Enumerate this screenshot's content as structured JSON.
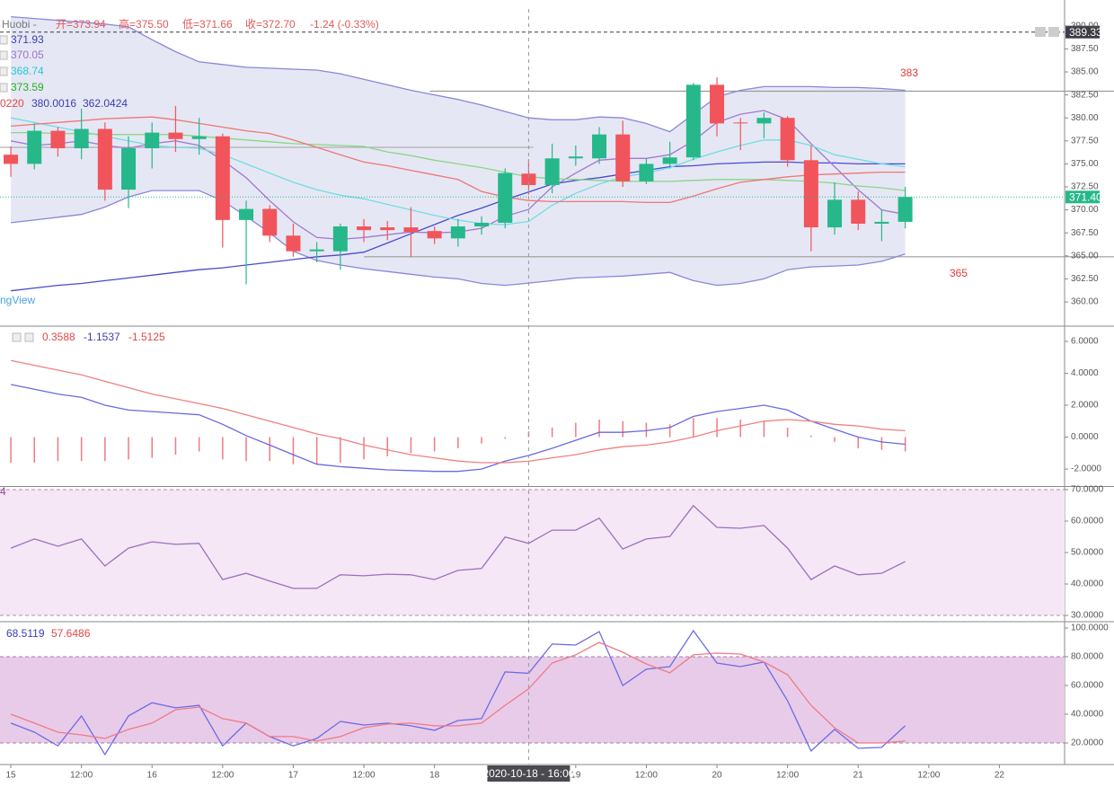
{
  "header": {
    "title": "Huobi -",
    "ohlc": [
      "开=373.94",
      "高=375.50",
      "低=371.66",
      "收=372.70"
    ],
    "change": "-1.24 (-0.33%)",
    "watermark": "ngView"
  },
  "time_axis": {
    "xlim": [
      -0.46,
      44.77
    ],
    "xticks": [
      {
        "value": 0,
        "label": "15"
      },
      {
        "value": 3,
        "label": "12:00"
      },
      {
        "value": 6,
        "label": "16"
      },
      {
        "value": 9,
        "label": "12:00"
      },
      {
        "value": 12,
        "label": "17"
      },
      {
        "value": 15,
        "label": "12:00"
      },
      {
        "value": 18,
        "label": "18"
      },
      {
        "value": 24,
        "label": "19"
      },
      {
        "value": 27,
        "label": "12:00"
      },
      {
        "value": 30,
        "label": "20"
      },
      {
        "value": 33,
        "label": "12:00"
      },
      {
        "value": 36,
        "label": "21"
      },
      {
        "value": 39,
        "label": "12:00"
      },
      {
        "value": 42,
        "label": "22"
      }
    ],
    "crosshair": {
      "value": 22,
      "label": "2020-10-18 - 16:00"
    }
  },
  "chart_data": [
    {
      "type": "candlestick",
      "up_color": "#26b88a",
      "down_color": "#f2545b",
      "open": [
        376.0,
        375.0,
        378.6,
        376.7,
        378.8,
        372.2,
        376.7,
        378.4,
        377.7,
        378.0,
        368.9,
        370.1,
        367.2,
        365.5,
        365.5,
        368.2,
        368.1,
        368.1,
        367.7,
        366.9,
        368.2,
        368.6,
        373.94,
        372.7,
        375.6,
        375.6,
        378.2,
        373.1,
        375.0,
        375.7,
        383.6,
        379.5,
        379.4,
        380.0,
        375.4,
        368.1,
        371.1,
        368.5,
        368.7
      ],
      "high": [
        376.9,
        379.4,
        379.0,
        381.0,
        379.5,
        378.0,
        379.5,
        381.3,
        380.0,
        378.3,
        371.0,
        370.5,
        368.5,
        366.5,
        368.5,
        369.0,
        368.8,
        370.3,
        368.2,
        369.0,
        369.3,
        374.5,
        375.5,
        377.2,
        377.0,
        379.0,
        379.7,
        375.6,
        377.4,
        383.8,
        384.4,
        380.0,
        380.6,
        380.2,
        377.0,
        373.0,
        372.0,
        370.0,
        372.5
      ],
      "low": [
        373.6,
        374.4,
        375.8,
        375.5,
        371.0,
        370.2,
        374.5,
        376.3,
        376.0,
        365.9,
        361.9,
        366.5,
        364.9,
        364.3,
        363.5,
        366.5,
        366.7,
        364.9,
        366.3,
        366.0,
        367.3,
        368.0,
        371.66,
        371.8,
        374.8,
        375.0,
        372.5,
        372.8,
        374.5,
        375.4,
        378.0,
        376.5,
        377.8,
        374.7,
        365.5,
        367.3,
        367.8,
        366.6,
        368.0
      ],
      "close": [
        375.0,
        378.6,
        376.7,
        378.8,
        372.2,
        376.7,
        378.4,
        377.7,
        378.0,
        368.9,
        370.1,
        367.2,
        365.5,
        365.7,
        368.2,
        367.8,
        367.8,
        367.6,
        366.9,
        368.2,
        368.6,
        374.0,
        372.7,
        375.6,
        375.8,
        378.2,
        373.1,
        375.0,
        375.7,
        383.6,
        379.4,
        379.4,
        380.0,
        375.4,
        368.1,
        371.1,
        368.5,
        368.7,
        371.4
      ],
      "band": {
        "line_color": "#8a87d8",
        "fill": "#e6e7f4",
        "upper": [
          391.0,
          390.8,
          390.6,
          390.4,
          390.2,
          389.9,
          388.5,
          387.2,
          386.1,
          385.8,
          385.5,
          385.4,
          385.3,
          385.2,
          384.8,
          384.2,
          383.6,
          383.0,
          382.5,
          382.0,
          381.4,
          380.7,
          380.0,
          379.8,
          379.8,
          380.1,
          380.0,
          379.4,
          378.5,
          380.4,
          382.3,
          383.0,
          383.4,
          383.4,
          383.4,
          383.3,
          383.3,
          383.2,
          383.0
        ],
        "lower": [
          368.6,
          368.9,
          369.2,
          369.5,
          370.3,
          371.4,
          372.1,
          372.1,
          372.1,
          371.0,
          369.3,
          367.5,
          365.5,
          364.5,
          364.0,
          363.6,
          363.3,
          363.0,
          362.7,
          362.5,
          362.0,
          361.8,
          362.04,
          362.3,
          362.6,
          362.7,
          362.8,
          363.0,
          363.2,
          362.3,
          361.8,
          362.0,
          362.5,
          363.5,
          363.8,
          363.9,
          364.0,
          364.4,
          365.2
        ]
      },
      "overlays": [
        {
          "color": "#4a4ad0",
          "values": [
            361.2,
            361.5,
            361.8,
            362.0,
            362.3,
            362.6,
            362.9,
            363.2,
            363.5,
            363.7,
            364.0,
            364.3,
            364.6,
            364.9,
            365.1,
            365.4,
            366.4,
            367.4,
            368.4,
            369.4,
            370.2,
            371.1,
            371.93,
            372.8,
            373.2,
            373.5,
            373.9,
            374.3,
            374.7,
            374.8,
            375.0,
            375.1,
            375.2,
            375.2,
            375.1,
            375.1,
            375.0,
            375.0,
            375.0
          ]
        },
        {
          "color": "#a07ad0",
          "values": [
            377.5,
            377.0,
            377.2,
            377.5,
            377.0,
            376.7,
            377.2,
            377.5,
            377.0,
            375.4,
            373.5,
            371.0,
            368.7,
            367.0,
            366.8,
            367.0,
            367.3,
            367.6,
            367.5,
            367.6,
            368.0,
            369.3,
            370.05,
            372.5,
            374.0,
            375.4,
            375.6,
            375.6,
            376.0,
            377.5,
            379.5,
            380.4,
            380.8,
            379.8,
            377.2,
            374.7,
            372.2,
            370.0,
            369.5
          ]
        },
        {
          "color": "#6fdde6",
          "values": [
            380.0,
            379.5,
            379.0,
            378.5,
            378.0,
            377.5,
            377.0,
            376.8,
            376.7,
            376.0,
            375.0,
            374.0,
            373.0,
            372.2,
            371.6,
            371.2,
            370.6,
            370.0,
            369.4,
            368.9,
            368.5,
            368.4,
            368.74,
            370.5,
            371.8,
            372.8,
            373.6,
            374.0,
            374.6,
            375.5,
            376.3,
            377.0,
            377.6,
            377.6,
            377.0,
            376.0,
            375.5,
            375.0,
            374.7
          ]
        },
        {
          "color": "#86d786",
          "values": [
            378.4,
            378.4,
            378.3,
            378.3,
            378.2,
            378.2,
            378.2,
            378.2,
            378.0,
            377.8,
            377.6,
            377.4,
            377.2,
            377.1,
            377.0,
            376.9,
            376.3,
            375.9,
            375.4,
            375.0,
            374.6,
            374.1,
            373.59,
            373.4,
            373.3,
            373.2,
            373.1,
            373.1,
            373.1,
            373.2,
            373.3,
            373.3,
            373.3,
            373.2,
            373.1,
            372.9,
            372.6,
            372.4,
            372.1
          ]
        },
        {
          "color": "#ef7676",
          "values": [
            379.1,
            379.3,
            379.5,
            379.7,
            379.9,
            380.0,
            380.1,
            379.8,
            379.4,
            379.0,
            378.6,
            378.3,
            377.6,
            376.8,
            376.0,
            375.2,
            374.8,
            374.3,
            373.8,
            373.3,
            372.0,
            371.4,
            371.02,
            370.9,
            370.9,
            370.9,
            370.9,
            370.8,
            370.8,
            371.5,
            372.3,
            373.0,
            373.3,
            373.6,
            373.8,
            373.9,
            374.0,
            374.1,
            374.1
          ]
        }
      ],
      "levels": [
        {
          "value": 382.9,
          "start": 17.8,
          "color": "#9a9a9a"
        },
        {
          "value": 364.9,
          "start": 15.0,
          "color": "#9a9a9a"
        },
        {
          "value": 376.8,
          "end": 22.2,
          "color": "#b0b0b0"
        }
      ],
      "price_markers": [
        {
          "value": 389.33,
          "color": "#3c3c44"
        },
        {
          "value": 371.4,
          "label": "371.40",
          "color": "#26b88a"
        }
      ],
      "annotations": [
        {
          "text": "383",
          "color": "#e03a3a"
        },
        {
          "text": "365",
          "color": "#e03a3a"
        }
      ],
      "legend": [
        {
          "text": "371.93",
          "color": "#3c3cb0"
        },
        {
          "text": "370.05",
          "color": "#9b76c8"
        },
        {
          "text": "368.74",
          "color": "#22c8d8"
        },
        {
          "text": "373.59",
          "color": "#22b022"
        },
        {
          "text": "0220",
          "color": "#e04848"
        },
        {
          "text": "380.0016",
          "color": "#3c3cb0"
        },
        {
          "text": "362.0424",
          "color": "#3c3cb0"
        }
      ],
      "ylim": [
        357.46,
        391.84
      ],
      "yticks": [
        {
          "value": 360,
          "label": "360.00"
        },
        {
          "value": 362.5,
          "label": "362.50"
        },
        {
          "value": 365,
          "label": "365.00"
        },
        {
          "value": 367.5,
          "label": "367.50"
        },
        {
          "value": 370,
          "label": "370.00"
        },
        {
          "value": 372.5,
          "label": "372.50"
        },
        {
          "value": 375,
          "label": "375.00"
        },
        {
          "value": 377.5,
          "label": "377.50"
        },
        {
          "value": 380,
          "label": "380.00"
        },
        {
          "value": 382.5,
          "label": "382.50"
        },
        {
          "value": 385,
          "label": "385.00"
        },
        {
          "value": 387.5,
          "label": "387.50"
        },
        {
          "value": 390,
          "label": "390.00"
        }
      ]
    },
    {
      "type": "macd",
      "histogram": {
        "color": "#f07a80",
        "values": [
          -1.6,
          -1.6,
          -1.5,
          -1.5,
          -1.5,
          -1.4,
          -1.3,
          -1.1,
          -0.9,
          -1.4,
          -1.5,
          -1.5,
          -1.7,
          -1.7,
          -1.6,
          -1.4,
          -1.2,
          -1.0,
          -0.9,
          -0.7,
          -0.4,
          -0.1,
          0.36,
          0.6,
          0.9,
          1.1,
          1.0,
          0.9,
          0.8,
          1.2,
          1.2,
          1.1,
          1.0,
          0.6,
          0.1,
          -0.3,
          -0.7,
          -0.8,
          -0.9
        ]
      },
      "series": [
        {
          "color": "#6a6ae0",
          "values": [
            3.3,
            3.0,
            2.7,
            2.5,
            2.0,
            1.7,
            1.6,
            1.5,
            1.4,
            0.8,
            0.1,
            -0.5,
            -1.1,
            -1.7,
            -1.85,
            -1.95,
            -2.05,
            -2.1,
            -2.15,
            -2.15,
            -2.0,
            -1.5,
            -1.15,
            -0.7,
            -0.2,
            0.3,
            0.3,
            0.4,
            0.6,
            1.3,
            1.6,
            1.8,
            2.0,
            1.7,
            1.0,
            0.5,
            0.0,
            -0.3,
            -0.45
          ]
        },
        {
          "color": "#f08080",
          "values": [
            4.8,
            4.5,
            4.2,
            3.9,
            3.5,
            3.1,
            2.7,
            2.4,
            2.1,
            1.8,
            1.4,
            1.0,
            0.6,
            0.2,
            -0.1,
            -0.5,
            -0.8,
            -1.1,
            -1.3,
            -1.5,
            -1.6,
            -1.6,
            -1.51,
            -1.3,
            -1.1,
            -0.8,
            -0.6,
            -0.5,
            -0.3,
            0.0,
            0.4,
            0.7,
            1.0,
            1.1,
            1.0,
            0.8,
            0.7,
            0.5,
            0.4
          ]
        }
      ],
      "legend": [
        {
          "text": "0.3588",
          "color": "#e04848"
        },
        {
          "text": "-1.1537",
          "color": "#3c3cb0"
        },
        {
          "text": "-1.5125",
          "color": "#e04848"
        }
      ],
      "ylim": [
        -3.01,
        6.845
      ],
      "yticks": [
        {
          "value": -2,
          "label": "-2.0000"
        },
        {
          "value": 0,
          "label": "0.0000"
        },
        {
          "value": 2,
          "label": "2.0000"
        },
        {
          "value": 4,
          "label": "4.0000"
        },
        {
          "value": 6,
          "label": "6.0000"
        }
      ]
    },
    {
      "type": "line",
      "band": {
        "range": [
          30,
          70
        ],
        "fill": "#f5e7f5",
        "line_color": "#b08cb0"
      },
      "series": [
        {
          "color": "#9b6fc0",
          "values": [
            51.4,
            54.3,
            52.0,
            54.3,
            45.7,
            51.4,
            53.4,
            52.6,
            52.9,
            41.4,
            43.4,
            40.9,
            38.6,
            38.6,
            42.9,
            42.6,
            43.1,
            42.9,
            41.4,
            44.3,
            44.9,
            54.9,
            52.9,
            57.1,
            57.1,
            60.9,
            51.1,
            54.3,
            55.1,
            64.9,
            58.0,
            57.7,
            58.6,
            51.4,
            41.4,
            45.7,
            42.9,
            43.4,
            47.1
          ]
        }
      ],
      "legend": [
        {
          "text": "4",
          "color": "#9b3fa0"
        }
      ],
      "ylim": [
        28.57,
        70.57
      ],
      "yticks": [
        {
          "value": 30,
          "label": "30.0000"
        },
        {
          "value": 40,
          "label": "40.0000"
        },
        {
          "value": 50,
          "label": "50.0000"
        },
        {
          "value": 60,
          "label": "60.0000"
        },
        {
          "value": 70,
          "label": "70.0000"
        }
      ]
    },
    {
      "type": "line",
      "band": {
        "range": [
          20,
          80
        ],
        "fill": "#e8cbe8",
        "line_color": "#a080a0"
      },
      "series": [
        {
          "color": "#6b6be6",
          "values": [
            33.8,
            27.5,
            18.0,
            38.8,
            11.9,
            38.8,
            48.0,
            44.4,
            46.2,
            18.0,
            33.8,
            24.4,
            18.0,
            23.1,
            35.0,
            32.5,
            33.8,
            31.9,
            28.8,
            35.6,
            36.9,
            69.4,
            68.5,
            88.8,
            88.1,
            97.5,
            60.0,
            71.3,
            73.1,
            98.1,
            75.6,
            73.1,
            76.3,
            49.4,
            14.4,
            29.4,
            16.3,
            16.9,
            31.9
          ]
        },
        {
          "color": "#ef7a86",
          "values": [
            40.0,
            33.8,
            27.5,
            25.6,
            23.1,
            29.4,
            33.8,
            43.1,
            45.0,
            36.9,
            33.8,
            24.4,
            24.4,
            21.3,
            24.4,
            30.6,
            33.1,
            33.8,
            31.9,
            31.9,
            33.8,
            46.2,
            57.6,
            75.6,
            81.3,
            90.0,
            83.1,
            75.0,
            68.8,
            81.3,
            82.5,
            81.9,
            76.3,
            67.5,
            46.2,
            30.6,
            20.0,
            20.0,
            21.3
          ]
        }
      ],
      "legend": [
        {
          "text": "68.5119",
          "color": "#3c3cb0"
        },
        {
          "text": "57.6486",
          "color": "#e04848"
        }
      ],
      "ylim": [
        5.6,
        102.5
      ],
      "yticks": [
        {
          "value": 20,
          "label": "20.0000"
        },
        {
          "value": 40,
          "label": "40.0000"
        },
        {
          "value": 60,
          "label": "60.0000"
        },
        {
          "value": 80,
          "label": "80.0000"
        },
        {
          "value": 100,
          "label": "100.0000"
        }
      ]
    }
  ]
}
